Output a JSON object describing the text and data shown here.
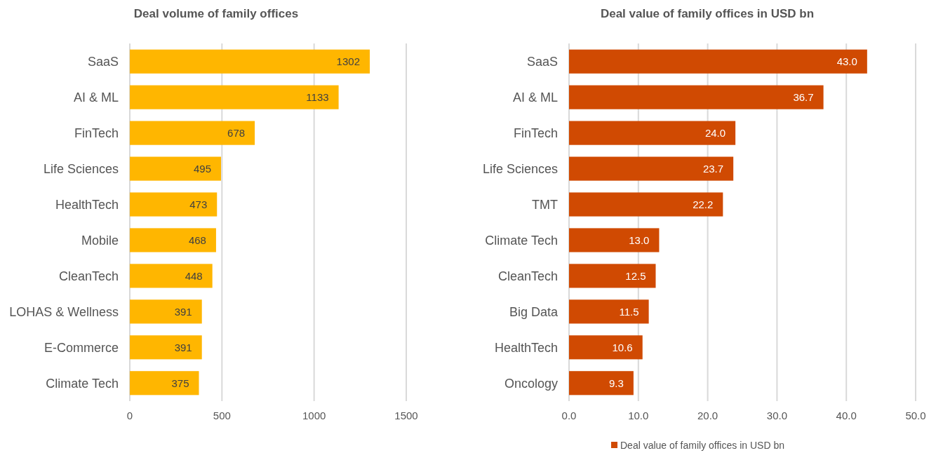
{
  "chart_data": [
    {
      "type": "bar",
      "orientation": "horizontal",
      "title": "Deal volume of family offices",
      "categories": [
        "SaaS",
        "AI & ML",
        "FinTech",
        "Life Sciences",
        "HealthTech",
        "Mobile",
        "CleanTech",
        "LOHAS & Wellness",
        "E-Commerce",
        "Climate Tech"
      ],
      "series": [
        {
          "color": "#ffb600",
          "values": [
            1302,
            1133,
            678,
            495,
            473,
            468,
            448,
            391,
            391,
            375
          ]
        }
      ],
      "data_labels": true,
      "xlim": [
        0,
        1500
      ],
      "xticks": [
        0,
        500,
        1000,
        1500
      ],
      "grid": "x",
      "legend": false
    },
    {
      "type": "bar",
      "orientation": "horizontal",
      "title": "Deal value of family offices in USD bn",
      "categories": [
        "SaaS",
        "AI & ML",
        "FinTech",
        "Life Sciences",
        "TMT",
        "Climate Tech",
        "CleanTech",
        "Big Data",
        "HealthTech",
        "Oncology"
      ],
      "series": [
        {
          "name": "Deal value of family offices in USD bn",
          "color": "#d04a02",
          "values": [
            43.0,
            36.7,
            24.0,
            23.7,
            22.2,
            13.0,
            12.5,
            11.5,
            10.6,
            9.3
          ],
          "value_labels": [
            "43.0",
            "36.7",
            "24.0",
            "23.7",
            "22.2",
            "13.0",
            "12.5",
            "11.5",
            "10.6",
            "9.3"
          ]
        }
      ],
      "xlim": [
        0,
        50
      ],
      "xticks": [
        {
          "value": 0,
          "label": "0.0"
        },
        {
          "value": 10,
          "label": "10.0"
        },
        {
          "value": 20,
          "label": "20.0"
        },
        {
          "value": 30,
          "label": "30.0"
        },
        {
          "value": 40,
          "label": "40.0"
        },
        {
          "value": 50,
          "label": "50.0"
        }
      ],
      "grid": "x",
      "legend": "bottom"
    }
  ]
}
